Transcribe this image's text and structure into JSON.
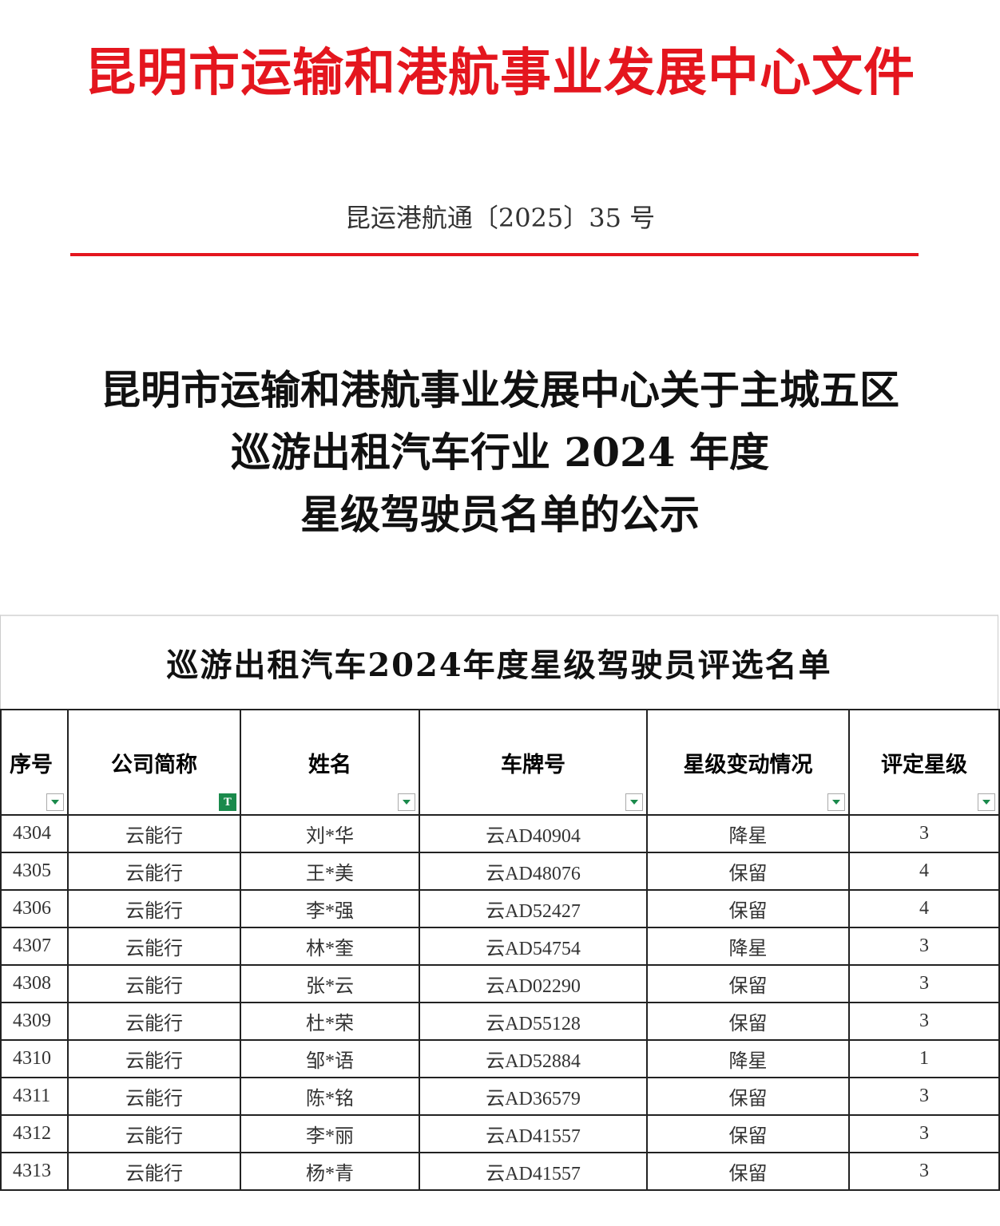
{
  "header": {
    "issuer": "昆明市运输和港航事业发展中心文件",
    "doc_number": "昆运港航通〔2025〕35 号",
    "accent_color": "#e4161e"
  },
  "notice_title": [
    "昆明市运输和港航事业发展中心关于主城五区",
    "巡游出租汽车行业 2024 年度",
    "星级驾驶员名单的公示"
  ],
  "sheet": {
    "title": "巡游出租汽车2024年度星级驾驶员评选名单",
    "columns": [
      "序号",
      "公司简称",
      "姓名",
      "车牌号",
      "星级变动情况",
      "评定星级"
    ],
    "filter_icon": "filter-dropdown-icon",
    "rows": [
      [
        "4304",
        "云能行",
        "刘*华",
        "云AD40904",
        "降星",
        "3"
      ],
      [
        "4305",
        "云能行",
        "王*美",
        "云AD48076",
        "保留",
        "4"
      ],
      [
        "4306",
        "云能行",
        "李*强",
        "云AD52427",
        "保留",
        "4"
      ],
      [
        "4307",
        "云能行",
        "林*奎",
        "云AD54754",
        "降星",
        "3"
      ],
      [
        "4308",
        "云能行",
        "张*云",
        "云AD02290",
        "保留",
        "3"
      ],
      [
        "4309",
        "云能行",
        "杜*荣",
        "云AD55128",
        "保留",
        "3"
      ],
      [
        "4310",
        "云能行",
        "邹*语",
        "云AD52884",
        "降星",
        "1"
      ],
      [
        "4311",
        "云能行",
        "陈*铭",
        "云AD36579",
        "保留",
        "3"
      ],
      [
        "4312",
        "云能行",
        "李*丽",
        "云AD41557",
        "保留",
        "3"
      ],
      [
        "4313",
        "云能行",
        "杨*青",
        "云AD41557",
        "保留",
        "3"
      ]
    ]
  }
}
